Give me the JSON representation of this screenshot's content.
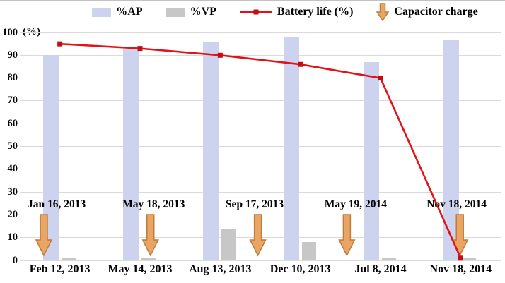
{
  "legend": {
    "items": [
      {
        "label": "%AP",
        "swatch": "bar",
        "color": "#cdd3ee"
      },
      {
        "label": "%VP",
        "swatch": "bar",
        "color": "#c7c7c7"
      },
      {
        "label": "Battery life (%)",
        "swatch": "line",
        "color": "#e01418"
      },
      {
        "label": "Capacitor charge",
        "swatch": "arrow",
        "color": "#eaa565"
      }
    ]
  },
  "chart_data": {
    "type": "bar+line",
    "title": "",
    "xlabel": "",
    "ylabel": "(%)",
    "ylim": [
      0,
      100
    ],
    "ytick_step": 10,
    "grid": true,
    "legend_position": "top",
    "categories": [
      "Feb 12, 2013",
      "May 14, 2013",
      "Aug 13, 2013",
      "Dec 10, 2013",
      "Jul 8, 2014",
      "Nov 18, 2014"
    ],
    "series": [
      {
        "name": "%AP",
        "type": "bar",
        "color": "#cdd3ee",
        "values": [
          90,
          93,
          96,
          98,
          87,
          97
        ]
      },
      {
        "name": "%VP",
        "type": "bar",
        "color": "#c7c7c7",
        "values": [
          1,
          1,
          14,
          8,
          1,
          1
        ]
      },
      {
        "name": "Battery life (%)",
        "type": "line",
        "color": "#e01418",
        "marker": "square",
        "marker_color": "#c20d12",
        "values": [
          95,
          93,
          90,
          86,
          80,
          1
        ]
      }
    ],
    "annotations": [
      {
        "label": "Jan 16, 2013",
        "arrow_slot": 0.3,
        "label_slot": 0.46
      },
      {
        "label": "May 18, 2013",
        "arrow_slot": 1.63,
        "label_slot": 1.67
      },
      {
        "label": "Sep 17, 2013",
        "arrow_slot": 2.97,
        "label_slot": 2.93
      },
      {
        "label": "May 19, 2014",
        "arrow_slot": 4.08,
        "label_slot": 4.19
      },
      {
        "label": "Nov 18, 2014",
        "arrow_slot": 5.49,
        "label_slot": 5.45
      }
    ],
    "annotation_style": {
      "fill": "#eaa565",
      "stroke": "#bd7d3c"
    }
  }
}
